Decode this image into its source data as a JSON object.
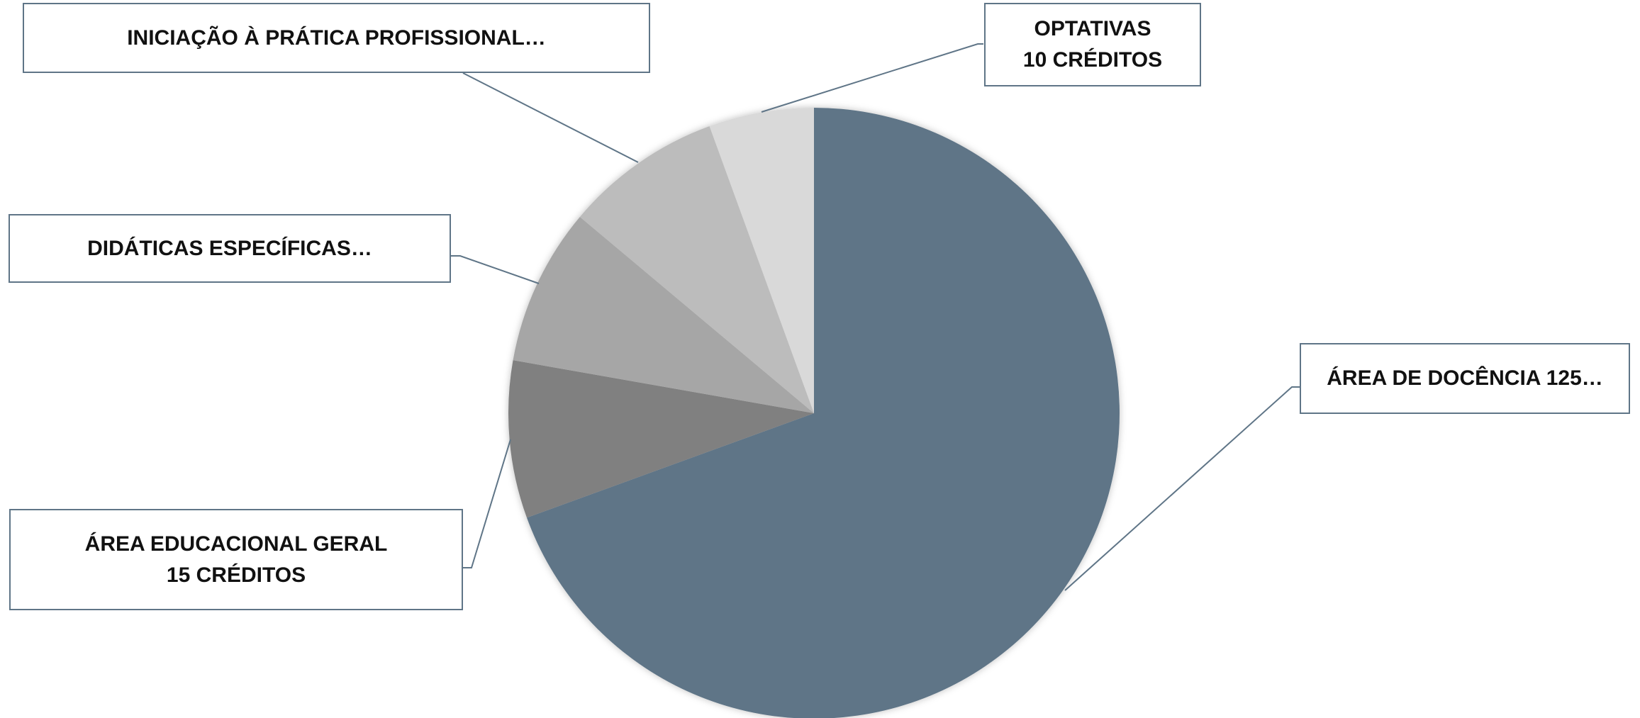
{
  "chart_data": {
    "type": "pie",
    "categories": [
      "ÁREA DE DOCÊNCIA 125…",
      "ÁREA EDUCACIONAL GERAL\n15 CRÉDITOS",
      "DIDÁTICAS ESPECÍFICAS…",
      "INICIAÇÃO À PRÁTICA PROFISSIONAL…",
      "OPTATIVAS\n10 CRÉDITOS"
    ],
    "values": [
      125,
      15,
      15,
      15,
      10
    ],
    "colors": [
      "#5f7587",
      "#808080",
      "#a6a6a6",
      "#bcbcbc",
      "#d9d9d9"
    ]
  }
}
